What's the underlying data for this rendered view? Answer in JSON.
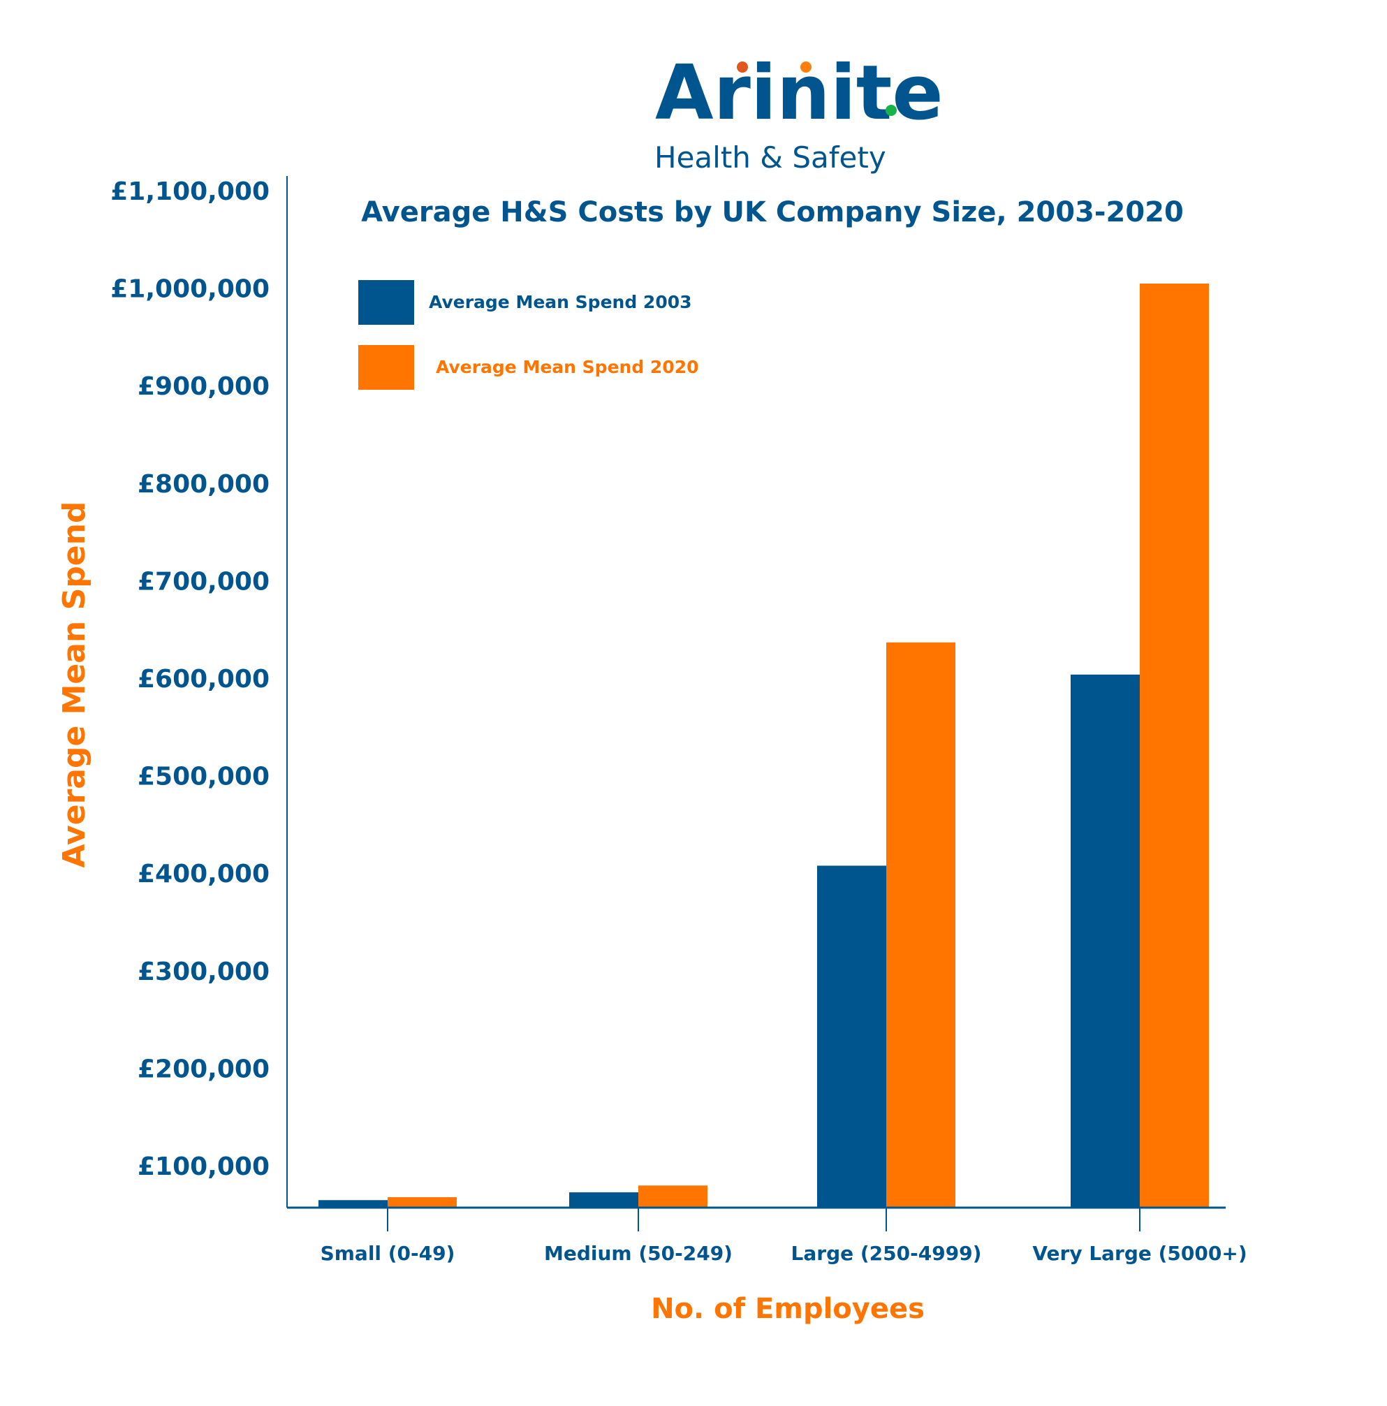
{
  "logo": {
    "name": "Arinite",
    "tagline": "Health & Safety",
    "colors": {
      "text": "#00558f",
      "dot_i1": "#e0561b",
      "dot_i2": "#ff7f0e",
      "period": "#17b34a"
    }
  },
  "chart_data": {
    "type": "bar",
    "title": "Average H&S Costs by UK Company Size, 2003-2020",
    "xlabel": "No. of Employees",
    "ylabel": "Average Mean Spend",
    "categories": [
      "Small (0-49)",
      "Medium (50-249)",
      "Large (250-4999)",
      "Very Large (5000+)"
    ],
    "series": [
      {
        "name": "Average Mean Spend 2003",
        "color": "#00558f",
        "values": [
          64000,
          72000,
          407000,
          603000
        ]
      },
      {
        "name": "Average Mean Spend 2020",
        "color": "#ff7500",
        "values": [
          67000,
          79000,
          636000,
          1004000
        ]
      }
    ],
    "yticks": [
      100000,
      200000,
      300000,
      400000,
      500000,
      600000,
      700000,
      800000,
      900000,
      1000000,
      1100000
    ],
    "ytick_labels": [
      "£100,000",
      "£200,000",
      "£300,000",
      "£400,000",
      "£500,000",
      "£600,000",
      "£700,000",
      "£800,000",
      "£900,000",
      "£1,000,000",
      "£1,100,000"
    ],
    "ylim": [
      56000,
      1100000
    ],
    "grid": false,
    "legend_position": "top-left",
    "colors": {
      "axis_text": "#00558f",
      "label_accent": "#ff7500"
    }
  }
}
